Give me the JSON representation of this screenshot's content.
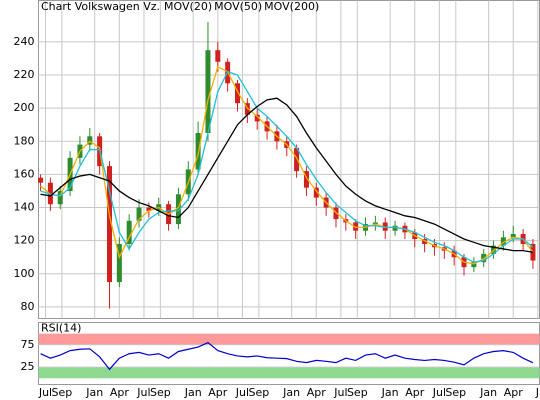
{
  "chart_data": [
    {
      "type": "candlestick",
      "title": "Chart Volkswagen Vz.",
      "title_color": "#d08040",
      "x": [
        -0.6,
        0.6,
        1.8,
        3.0,
        4.2,
        5.4,
        6.6,
        7.8,
        9.0,
        10.2,
        11.4,
        12.6,
        13.8,
        15.0,
        16.2,
        17.4,
        18.6,
        19.8,
        21.0,
        22.2,
        23.4,
        24.6,
        25.8,
        27.0,
        28.2,
        29.4,
        30.6,
        31.8,
        33.0,
        34.2,
        35.4,
        36.6,
        37.8,
        39.0,
        40.2,
        41.4,
        42.6,
        43.8,
        45.0,
        46.2,
        47.4,
        48.6,
        49.8,
        51.0,
        52.2,
        53.4,
        54.6,
        55.8,
        57.0,
        58.2,
        59.4
      ],
      "open": [
        158,
        155,
        142,
        150,
        170,
        178,
        183,
        165,
        95,
        118,
        132,
        140,
        138,
        142,
        130,
        148,
        163,
        185,
        235,
        228,
        215,
        203,
        196,
        192,
        186,
        180,
        176,
        162,
        152,
        146,
        140,
        133,
        131,
        126,
        130,
        131,
        126,
        129,
        125,
        121,
        118,
        116,
        114,
        110,
        104,
        107,
        112,
        117,
        122,
        124,
        118
      ],
      "high": [
        160,
        158,
        153,
        174,
        183,
        188,
        185,
        168,
        122,
        136,
        145,
        143,
        146,
        144,
        152,
        168,
        192,
        252,
        240,
        230,
        217,
        206,
        200,
        195,
        190,
        183,
        178,
        165,
        155,
        149,
        143,
        136,
        133,
        134,
        135,
        134,
        132,
        131,
        127,
        124,
        121,
        119,
        117,
        112,
        110,
        115,
        120,
        126,
        129,
        127,
        121
      ],
      "low": [
        150,
        138,
        139,
        147,
        166,
        174,
        160,
        79,
        92,
        114,
        128,
        134,
        135,
        126,
        127,
        144,
        160,
        180,
        222,
        210,
        198,
        191,
        187,
        181,
        175,
        171,
        158,
        147,
        141,
        135,
        128,
        126,
        121,
        123,
        126,
        121,
        123,
        121,
        116,
        113,
        111,
        109,
        105,
        99,
        101,
        104,
        109,
        114,
        119,
        114,
        103
      ],
      "close": [
        155,
        142,
        150,
        170,
        178,
        183,
        165,
        95,
        118,
        132,
        140,
        138,
        142,
        130,
        148,
        163,
        185,
        235,
        228,
        215,
        203,
        196,
        192,
        186,
        180,
        176,
        162,
        152,
        146,
        140,
        133,
        131,
        126,
        130,
        131,
        126,
        129,
        125,
        121,
        118,
        116,
        114,
        110,
        104,
        107,
        112,
        117,
        122,
        124,
        118,
        108
      ],
      "up_color": "#2e8b2e",
      "down_color": "#d02020",
      "series": [
        {
          "name": "MOV(20)",
          "color": "#f0b000",
          "values": [
            153,
            148,
            147,
            160,
            174,
            180,
            176,
            135,
            110,
            122,
            133,
            138,
            140,
            136,
            140,
            155,
            172,
            205,
            225,
            222,
            210,
            200,
            195,
            189,
            183,
            178,
            170,
            158,
            150,
            143,
            137,
            132,
            128,
            128,
            130,
            128,
            128,
            127,
            123,
            120,
            117,
            115,
            112,
            107,
            106,
            109,
            114,
            119,
            122,
            121,
            113
          ]
        },
        {
          "name": "MOV(50)",
          "color": "#20c0d8",
          "values": [
            150,
            148,
            147,
            152,
            165,
            175,
            175,
            150,
            125,
            115,
            125,
            133,
            137,
            138,
            138,
            145,
            160,
            185,
            210,
            222,
            220,
            210,
            200,
            195,
            189,
            183,
            176,
            166,
            157,
            149,
            142,
            137,
            132,
            129,
            129,
            128,
            128,
            127,
            125,
            122,
            119,
            117,
            114,
            110,
            107,
            108,
            112,
            117,
            121,
            121,
            116
          ]
        },
        {
          "name": "MOV(200)",
          "color": "#000000",
          "values": [
            148,
            147,
            152,
            157,
            159,
            160,
            158,
            156,
            150,
            146,
            143,
            141,
            138,
            135,
            134,
            140,
            150,
            160,
            170,
            180,
            190,
            196,
            201,
            205,
            206,
            202,
            195,
            185,
            176,
            168,
            160,
            153,
            148,
            144,
            141,
            139,
            137,
            135,
            134,
            132,
            130,
            127,
            124,
            121,
            119,
            117,
            116,
            115,
            114,
            114,
            113
          ]
        }
      ],
      "xlim": [
        -0.85,
        60.2
      ],
      "ylim": [
        73,
        265
      ],
      "yticks": [
        80,
        100,
        120,
        140,
        160,
        180,
        200,
        220,
        240
      ],
      "xticks": [
        {
          "value": 0,
          "label": "Jul"
        },
        {
          "value": 2,
          "label": "Sep"
        },
        {
          "value": 6,
          "label": "Jan"
        },
        {
          "value": 9,
          "label": "Apr"
        },
        {
          "value": 12,
          "label": "Jul"
        },
        {
          "value": 14,
          "label": "Sep"
        },
        {
          "value": 18,
          "label": "Jan"
        },
        {
          "value": 21,
          "label": "Apr"
        },
        {
          "value": 24,
          "label": "Jul"
        },
        {
          "value": 26,
          "label": "Sep"
        },
        {
          "value": 30,
          "label": "Jan"
        },
        {
          "value": 33,
          "label": "Apr"
        },
        {
          "value": 36,
          "label": "Jul"
        },
        {
          "value": 38,
          "label": "Sep"
        },
        {
          "value": 42,
          "label": "Jan"
        },
        {
          "value": 45,
          "label": "Apr"
        },
        {
          "value": 48,
          "label": "Jul"
        },
        {
          "value": 50,
          "label": "Sep"
        },
        {
          "value": 54,
          "label": "Jan"
        },
        {
          "value": 57,
          "label": "Apr"
        },
        {
          "value": 60,
          "label": "J"
        }
      ],
      "grid": true
    },
    {
      "type": "line",
      "title": "RSI(14)",
      "color": "#0000cc",
      "x": [
        -0.6,
        0.6,
        1.8,
        3.0,
        4.2,
        5.4,
        6.6,
        7.8,
        9.0,
        10.2,
        11.4,
        12.6,
        13.8,
        15.0,
        16.2,
        17.4,
        18.6,
        19.8,
        21.0,
        22.2,
        23.4,
        24.6,
        25.8,
        27.0,
        28.2,
        29.4,
        30.6,
        31.8,
        33.0,
        34.2,
        35.4,
        36.6,
        37.8,
        39.0,
        40.2,
        41.4,
        42.6,
        43.8,
        45.0,
        46.2,
        47.4,
        48.6,
        49.8,
        51.0,
        52.2,
        53.4,
        54.6,
        55.8,
        57.0,
        58.2,
        59.4
      ],
      "values": [
        55,
        45,
        52,
        62,
        65,
        66,
        48,
        20,
        45,
        55,
        58,
        52,
        55,
        45,
        60,
        65,
        70,
        80,
        62,
        55,
        50,
        48,
        50,
        46,
        45,
        44,
        38,
        35,
        40,
        38,
        35,
        45,
        40,
        52,
        55,
        45,
        52,
        45,
        42,
        40,
        42,
        40,
        36,
        30,
        45,
        55,
        60,
        62,
        58,
        45,
        35
      ],
      "bands": [
        {
          "range": [
            75,
            100
          ],
          "color": "#ff9a9a"
        },
        {
          "range": [
            0,
            25
          ],
          "color": "#8fd88f"
        }
      ],
      "xlim": [
        -0.85,
        60.2
      ],
      "ylim": [
        -14,
        125
      ],
      "yticks": [
        25,
        75
      ],
      "grid": true
    }
  ]
}
